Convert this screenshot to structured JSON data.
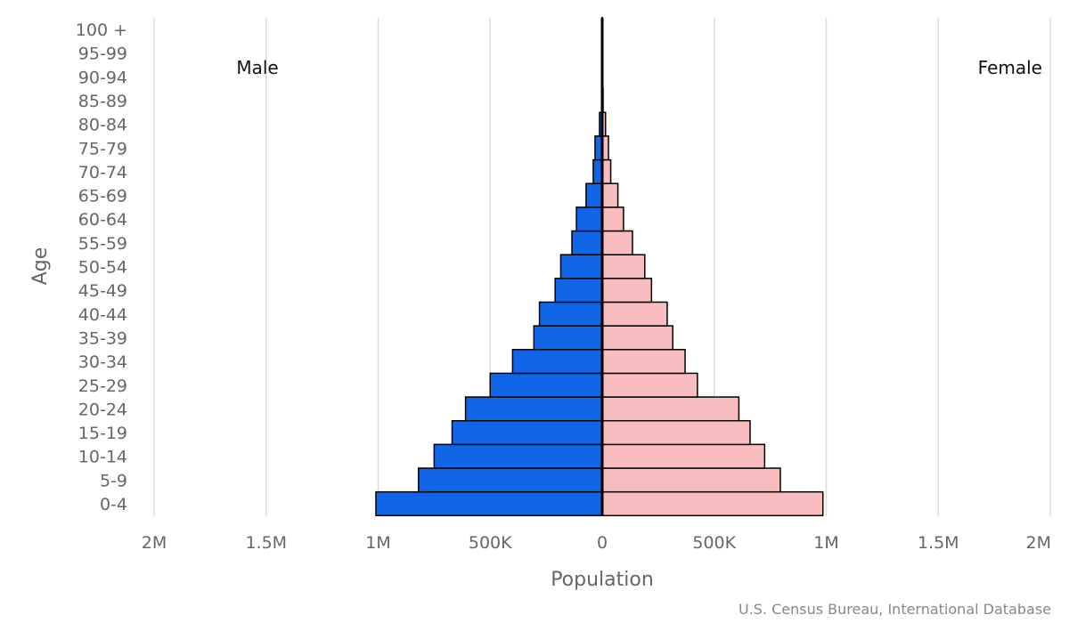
{
  "chart_data": {
    "type": "bar",
    "orientation": "horizontal-diverging",
    "categories": [
      "0-4",
      "5-9",
      "10-14",
      "15-19",
      "20-24",
      "25-29",
      "30-34",
      "35-39",
      "40-44",
      "45-49",
      "50-54",
      "55-59",
      "60-64",
      "65-69",
      "70-74",
      "75-79",
      "80-84",
      "85-89",
      "90-94",
      "95-99",
      "100 +"
    ],
    "series": [
      {
        "name": "Male",
        "color": "#1066e6",
        "values": [
          1010000,
          820000,
          750000,
          670000,
          610000,
          500000,
          400000,
          305000,
          280000,
          210000,
          185000,
          135000,
          115000,
          72000,
          40000,
          32000,
          12000,
          3000,
          1000,
          300,
          50
        ]
      },
      {
        "name": "Female",
        "color": "#f9bdbf",
        "values": [
          985000,
          795000,
          725000,
          660000,
          610000,
          425000,
          370000,
          315000,
          290000,
          220000,
          190000,
          135000,
          95000,
          70000,
          38000,
          28000,
          15000,
          4000,
          1500,
          400,
          80
        ]
      }
    ],
    "xlabel": "Population",
    "ylabel": "Age",
    "xlim": [
      -2000000,
      2000000
    ],
    "xticks": [
      {
        "value": -2000000,
        "label": "2M"
      },
      {
        "value": -1500000,
        "label": "1.5M"
      },
      {
        "value": -1000000,
        "label": "1M"
      },
      {
        "value": -500000,
        "label": "500K"
      },
      {
        "value": 0,
        "label": "0"
      },
      {
        "value": 500000,
        "label": "500K"
      },
      {
        "value": 1000000,
        "label": "1M"
      },
      {
        "value": 1500000,
        "label": "1.5M"
      },
      {
        "value": 2000000,
        "label": "2M"
      }
    ],
    "grid": true,
    "left_label": "Male",
    "right_label": "Female",
    "credit": "U.S. Census Bureau, International Database"
  }
}
